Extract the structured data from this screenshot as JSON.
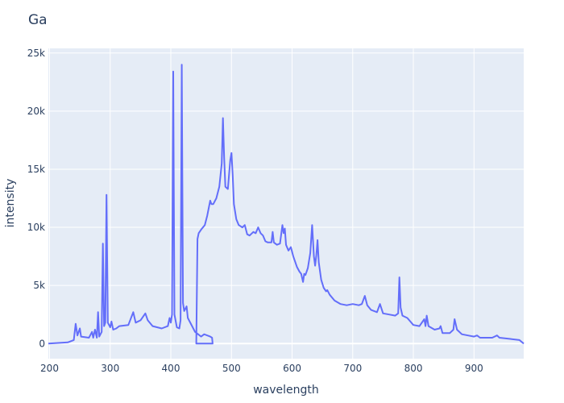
{
  "chart_data": {
    "type": "line",
    "title": "Ga",
    "x_label": "wavelength",
    "y_label": "intensity",
    "x": [
      198,
      230,
      240,
      243,
      246,
      250,
      252,
      265,
      270,
      272,
      275,
      278,
      280,
      282,
      286,
      288,
      290,
      292,
      294,
      296,
      300,
      302,
      305,
      310,
      315,
      330,
      338,
      342,
      350,
      358,
      362,
      370,
      385,
      395,
      398,
      400,
      402,
      404,
      406,
      410,
      414,
      416,
      418,
      420,
      422,
      426,
      428,
      435,
      440,
      445,
      450,
      455,
      465,
      468,
      469,
      442,
      444,
      446,
      450,
      456,
      460,
      465,
      467,
      470,
      475,
      480,
      484,
      486,
      488,
      490,
      494,
      498,
      500,
      502,
      504,
      508,
      512,
      518,
      522,
      526,
      530,
      536,
      540,
      544,
      548,
      552,
      556,
      560,
      566,
      568,
      570,
      575,
      580,
      584,
      586,
      588,
      590,
      594,
      598,
      602,
      608,
      612,
      615,
      618,
      620,
      622,
      626,
      630,
      633,
      636,
      638,
      640,
      642,
      644,
      648,
      652,
      656,
      658,
      662,
      670,
      680,
      690,
      700,
      710,
      715,
      720,
      724,
      730,
      740,
      745,
      750,
      760,
      770,
      775,
      777,
      779,
      782,
      790,
      795,
      800,
      810,
      818,
      820,
      822,
      825,
      835,
      843,
      845,
      848,
      860,
      866,
      868,
      872,
      880,
      890,
      900,
      905,
      910,
      930,
      938,
      942,
      960,
      975,
      982
    ],
    "series": [
      {
        "name": "Ga",
        "color": "#636efa",
        "values": [
          0,
          100,
          300,
          1700,
          700,
          1300,
          600,
          500,
          1000,
          500,
          1200,
          500,
          2700,
          600,
          1000,
          8600,
          1500,
          1800,
          12800,
          1800,
          1400,
          1900,
          1200,
          1300,
          1500,
          1600,
          2700,
          1800,
          2000,
          2600,
          2000,
          1500,
          1300,
          1500,
          2200,
          1800,
          2500,
          23400,
          2500,
          1400,
          1300,
          2000,
          24000,
          3500,
          2800,
          3200,
          2200,
          1500,
          1000,
          800,
          600,
          800,
          600,
          500,
          0,
          0,
          9000,
          9500,
          9800,
          10200,
          11000,
          12300,
          12000,
          12000,
          12500,
          13500,
          15500,
          19400,
          16000,
          13500,
          13300,
          15800,
          16400,
          14500,
          12000,
          10700,
          10200,
          10000,
          10200,
          9400,
          9300,
          9600,
          9500,
          10000,
          9500,
          9300,
          8800,
          8700,
          8700,
          9600,
          8700,
          8500,
          8600,
          10200,
          9500,
          9900,
          8500,
          8000,
          8300,
          7500,
          6600,
          6200,
          6000,
          5300,
          6000,
          5900,
          6500,
          7800,
          10200,
          7500,
          6700,
          7600,
          8900,
          7000,
          5500,
          4800,
          4500,
          4600,
          4200,
          3700,
          3400,
          3300,
          3400,
          3300,
          3400,
          4100,
          3300,
          2900,
          2700,
          3400,
          2600,
          2500,
          2400,
          2600,
          5700,
          3100,
          2400,
          2200,
          1900,
          1600,
          1500,
          2100,
          1500,
          2400,
          1500,
          1200,
          1300,
          1500,
          900,
          900,
          1200,
          2100,
          1200,
          800,
          700,
          600,
          700,
          500,
          500,
          700,
          500,
          400,
          300,
          0
        ]
      }
    ],
    "xlim": [
      198,
      982
    ],
    "xticks": [
      200,
      300,
      400,
      500,
      600,
      700,
      800,
      900
    ],
    "ylim": [
      -1300,
      25400
    ],
    "yticks": [
      0,
      {
        "value": 5000,
        "label": "5k"
      },
      {
        "value": 10000,
        "label": "10k"
      },
      {
        "value": 15000,
        "label": "15k"
      },
      {
        "value": 20000,
        "label": "20k"
      },
      {
        "value": 25000,
        "label": "25k"
      }
    ],
    "grid": true,
    "background": "#e5ecf6"
  }
}
